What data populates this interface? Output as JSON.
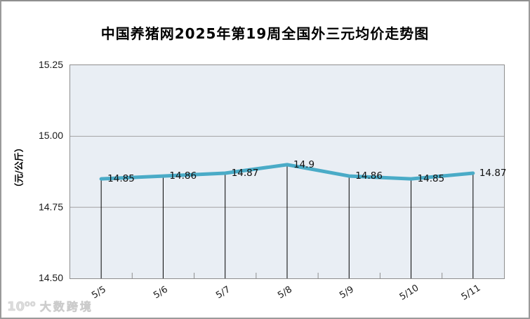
{
  "chart_data": {
    "type": "line",
    "title": "中国养猪网2025年第19周全国外三元均价走势图",
    "ylabel": "（元/公斤）",
    "xlabel": "",
    "categories": [
      "5/5",
      "5/6",
      "5/7",
      "5/8",
      "5/9",
      "5/10",
      "5/11"
    ],
    "values": [
      14.85,
      14.86,
      14.87,
      14.9,
      14.86,
      14.85,
      14.87
    ],
    "point_labels": [
      "14.85",
      "14.86",
      "14.87",
      "14.9",
      "14.86",
      "14.85",
      "14.87"
    ],
    "ylim": [
      14.5,
      15.25
    ],
    "yticks": [
      "15.25",
      "15.00",
      "14.75",
      "14.50"
    ],
    "grid": "horizontal gridlines on, vertical drop lines from points to axis",
    "legend": "none",
    "colors": {
      "line": "#4aabc7",
      "plot_background": "#e9eef4",
      "gridline": "#a3a3a3",
      "plot_border": "#8e8e8e",
      "drop_line": "#000000",
      "minor_tick": "#8e8e8e",
      "label_text": "#111111"
    }
  },
  "watermark": {
    "logo_text": "10⁰⁰",
    "brand_text": "大数跨境"
  }
}
